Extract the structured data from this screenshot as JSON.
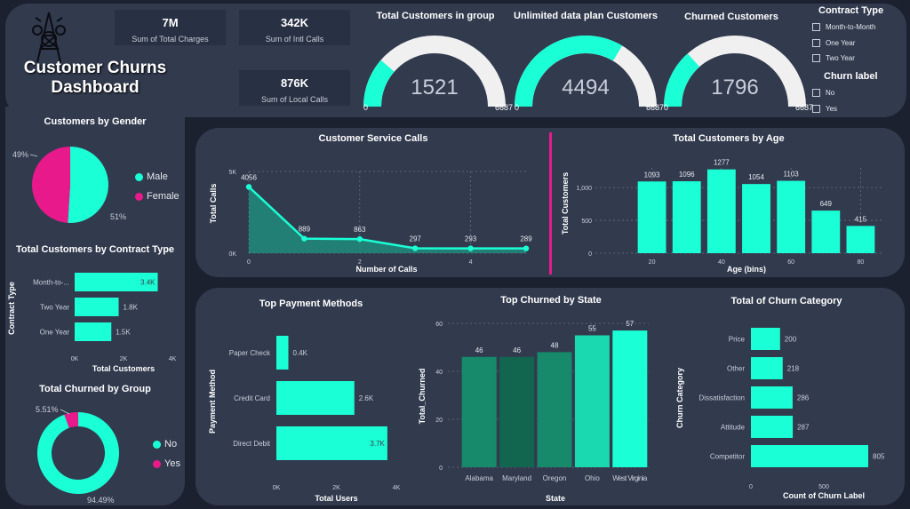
{
  "dashboard": {
    "title_line1": "Customer Churns",
    "title_line2": "Dashboard",
    "logo_icon": "network-tower-icon"
  },
  "colors": {
    "accent": "#1affd5",
    "magenta": "#e8198b",
    "panel": "#323a4e",
    "bg": "#1c2130",
    "gauge_track": "#f0f0f0",
    "dark_green": "#168a6b"
  },
  "kpis": [
    {
      "value": "7M",
      "label": "Sum of Total Charges"
    },
    {
      "value": "342K",
      "label": "Sum of Intl Calls"
    },
    {
      "value": "876K",
      "label": "Sum of Local Calls"
    }
  ],
  "gauges": [
    {
      "title": "Total Customers in group",
      "value": 1521,
      "min": 0,
      "max": 6687,
      "min_label": "0",
      "max_label": "6687",
      "value_label": "1521"
    },
    {
      "title": "Unlimited data plan Customers",
      "value": 4494,
      "min": 0,
      "max": 6687,
      "min_label": "0",
      "max_label": "6687",
      "value_label": "4494"
    },
    {
      "title": "Churned Customers",
      "value": 1796,
      "min": 0,
      "max": 6687,
      "min_label": "0",
      "max_label": "6687",
      "value_label": "1796"
    }
  ],
  "slicers": {
    "contract_title": "Contract Type",
    "contract_items": [
      "Month-to-Month",
      "One Year",
      "Two Year"
    ],
    "churn_title": "Churn label",
    "churn_items": [
      "No",
      "Yes"
    ]
  },
  "chart_data": [
    {
      "id": "gender",
      "type": "pie",
      "title": "Customers by Gender",
      "categories": [
        "Male",
        "Female"
      ],
      "values": [
        51,
        49
      ],
      "labels": [
        "51%",
        "49%"
      ]
    },
    {
      "id": "contract",
      "type": "bar",
      "orientation": "horizontal",
      "title": "Total Customers by Contract Type",
      "ylabel": "Contract Type",
      "xlabel": "Total Customers",
      "categories": [
        "Month-to-...",
        "Two Year",
        "One Year"
      ],
      "values": [
        3400,
        1800,
        1500
      ],
      "labels": [
        "3.4K",
        "1.8K",
        "1.5K"
      ],
      "xticks": [
        "0K",
        "2K",
        "4K"
      ],
      "xlim": [
        0,
        4000
      ]
    },
    {
      "id": "churn_group",
      "type": "pie",
      "style": "donut",
      "title": "Total Churned by Group",
      "categories": [
        "No",
        "Yes"
      ],
      "values": [
        94.49,
        5.51
      ],
      "labels": [
        "94.49%",
        "5.51%"
      ]
    },
    {
      "id": "service_calls",
      "type": "area",
      "title": "Customer Service Calls",
      "xlabel": "Number of Calls",
      "ylabel": "Total Calls",
      "x": [
        0,
        1,
        2,
        3,
        4,
        5
      ],
      "values": [
        4056,
        889,
        863,
        297,
        293,
        289
      ],
      "labels": [
        "4056",
        "889",
        "863",
        "297",
        "293",
        "289"
      ],
      "xticks": [
        "0",
        "2",
        "4"
      ],
      "yticks": [
        "0K",
        "5K"
      ],
      "ylim": [
        0,
        5000
      ]
    },
    {
      "id": "age",
      "type": "bar",
      "title": "Total Customers by Age",
      "xlabel": "Age (bins)",
      "ylabel": "Total Customers",
      "x": [
        20,
        30,
        40,
        50,
        60,
        70,
        80
      ],
      "values": [
        1093,
        1096,
        1277,
        1054,
        1103,
        649,
        415
      ],
      "labels": [
        "1093",
        "1096",
        "1277",
        "1054",
        "1103",
        "649",
        "415"
      ],
      "xticks": [
        "20",
        "40",
        "60",
        "80"
      ],
      "yticks": [
        "0",
        "500",
        "1,000"
      ],
      "ylim": [
        0,
        1300
      ]
    },
    {
      "id": "payment",
      "type": "bar",
      "orientation": "horizontal",
      "title": "Top Payment Methods",
      "ylabel": "Payment Method",
      "xlabel": "Total Users",
      "categories": [
        "Paper Check",
        "Credit Card",
        "Direct Debit"
      ],
      "values": [
        400,
        2600,
        3700
      ],
      "labels": [
        "0.4K",
        "2.6K",
        "3.7K"
      ],
      "xticks": [
        "0K",
        "2K",
        "4K"
      ],
      "xlim": [
        0,
        4000
      ]
    },
    {
      "id": "state",
      "type": "bar",
      "title": "Top Churned by State",
      "xlabel": "State",
      "ylabel": "Total_Churned",
      "categories": [
        "Alabama",
        "Maryland",
        "Oregon",
        "Ohio",
        "West Virginia"
      ],
      "values": [
        46,
        46,
        48,
        55,
        57
      ],
      "labels": [
        "46",
        "46",
        "48",
        "55",
        "57"
      ],
      "yticks": [
        "0",
        "20",
        "40",
        "60"
      ],
      "ylim": [
        0,
        60
      ]
    },
    {
      "id": "churn_category",
      "type": "bar",
      "orientation": "horizontal",
      "title": "Total of Churn Category",
      "ylabel": "Churn Category",
      "xlabel": "Count of Churn Label",
      "categories": [
        "Price",
        "Other",
        "Dissatisfaction",
        "Attitude",
        "Competitor"
      ],
      "values": [
        200,
        218,
        286,
        287,
        805
      ],
      "labels": [
        "200",
        "218",
        "286",
        "287",
        "805"
      ],
      "xticks": [
        "0",
        "500"
      ],
      "xlim": [
        0,
        1000
      ]
    }
  ]
}
